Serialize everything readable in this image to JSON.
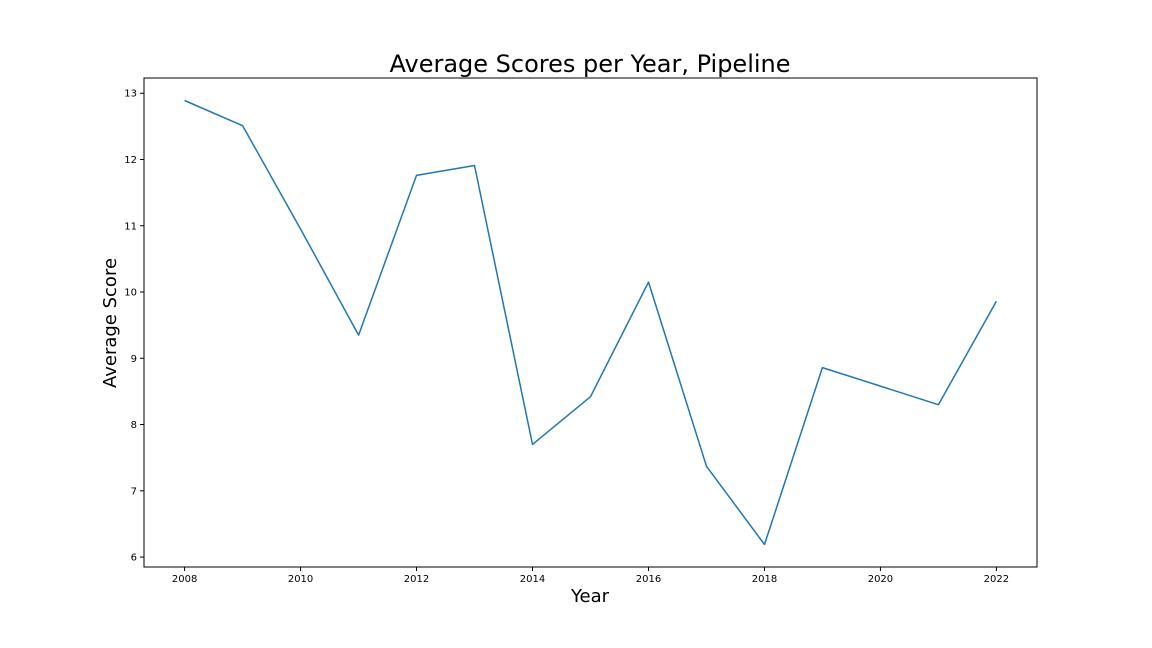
{
  "chart_data": {
    "type": "line",
    "title": "Average Scores per Year, Pipeline",
    "xlabel": "Year",
    "ylabel": "Average Score",
    "x": [
      2008,
      2009,
      2010,
      2011,
      2012,
      2013,
      2014,
      2015,
      2016,
      2017,
      2018,
      2019,
      2020,
      2021,
      2022
    ],
    "series": [
      {
        "values": [
          12.89,
          12.51,
          10.95,
          9.35,
          11.76,
          11.91,
          7.7,
          8.42,
          10.15,
          7.37,
          6.19,
          8.86,
          8.58,
          8.3,
          9.86
        ]
      }
    ],
    "xticks": [
      "2008",
      "2010",
      "2012",
      "2014",
      "2016",
      "2018",
      "2020",
      "2022"
    ],
    "yticks": [
      "6",
      "7",
      "8",
      "9",
      "10",
      "11",
      "12",
      "13"
    ],
    "xlim": [
      2007.3,
      2022.7
    ],
    "ylim": [
      5.85,
      13.23
    ],
    "grid": false,
    "line_color": "#1f77b4"
  }
}
